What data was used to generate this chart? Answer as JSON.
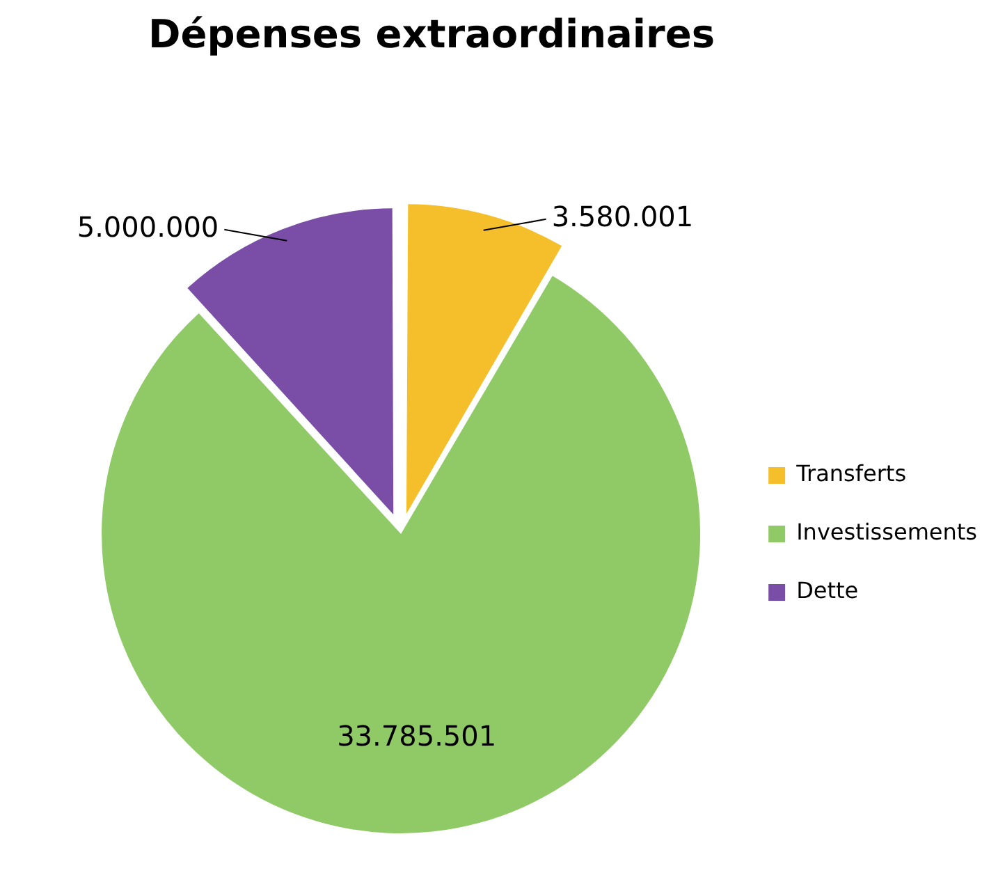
{
  "chart_data": {
    "type": "pie",
    "title": "Dépenses extraordinaires",
    "categories": [
      "Transferts",
      "Investissements",
      "Dette"
    ],
    "values": [
      3580001,
      33785501,
      5000000
    ],
    "value_labels": [
      "3.580.001",
      "33.785.501",
      "5.000.000"
    ],
    "colors": [
      "#f4bf2a",
      "#8fca66",
      "#7a4ea6"
    ],
    "legend": "right"
  }
}
